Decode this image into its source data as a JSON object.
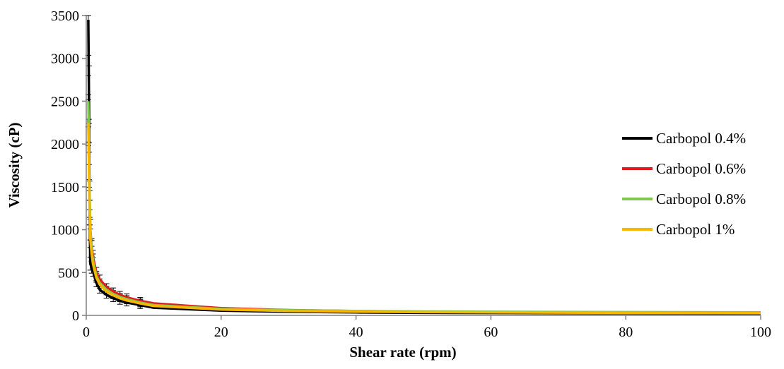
{
  "chart_data": {
    "type": "line",
    "title": "",
    "xlabel": "Shear rate (rpm)",
    "ylabel": "Viscosity (cP)",
    "xlim": [
      0,
      100
    ],
    "ylim": [
      0,
      3500
    ],
    "xticks": [
      0,
      20,
      40,
      60,
      80,
      100
    ],
    "yticks": [
      0,
      500,
      1000,
      1500,
      2000,
      2500,
      3000,
      3500
    ],
    "grid": false,
    "legend_position": "right",
    "error_bars": true,
    "series": [
      {
        "name": "Carbopol 0.4%",
        "color": "#000000",
        "x": [
          0.3,
          0.4,
          0.5,
          0.6,
          0.8,
          1,
          1.5,
          2,
          3,
          4,
          5,
          6,
          8,
          10,
          20,
          30,
          40,
          50,
          60,
          80,
          100
        ],
        "y": [
          3450,
          2600,
          1200,
          600,
          560,
          520,
          380,
          300,
          240,
          200,
          170,
          150,
          120,
          90,
          55,
          42,
          35,
          30,
          28,
          25,
          22
        ]
      },
      {
        "name": "Carbopol 0.6%",
        "color": "#e31a1c",
        "x": [
          0.3,
          0.4,
          0.5,
          0.6,
          0.8,
          1,
          1.5,
          2,
          3,
          4,
          5,
          6,
          8,
          10,
          20,
          30,
          40,
          50,
          60,
          80,
          100
        ],
        "y": [
          2300,
          1800,
          1300,
          1000,
          800,
          680,
          500,
          420,
          330,
          280,
          240,
          210,
          170,
          140,
          85,
          62,
          50,
          42,
          38,
          32,
          28
        ]
      },
      {
        "name": "Carbopol 0.8%",
        "color": "#7ec850",
        "x": [
          0.3,
          0.4,
          0.5,
          0.6,
          0.8,
          1,
          1.5,
          2,
          3,
          4,
          5,
          6,
          8,
          10,
          20,
          30,
          40,
          50,
          60,
          80,
          100
        ],
        "y": [
          2500,
          2000,
          1400,
          1000,
          780,
          640,
          460,
          380,
          300,
          250,
          215,
          190,
          150,
          120,
          75,
          60,
          52,
          45,
          42,
          38,
          35
        ]
      },
      {
        "name": "Carbopol 1%",
        "color": "#f5b800",
        "x": [
          0.3,
          0.4,
          0.5,
          0.6,
          0.8,
          1,
          1.5,
          2,
          3,
          4,
          5,
          6,
          8,
          10,
          20,
          30,
          40,
          50,
          60,
          80,
          100
        ],
        "y": [
          2250,
          1700,
          1200,
          900,
          720,
          600,
          440,
          360,
          280,
          235,
          200,
          175,
          140,
          110,
          68,
          52,
          44,
          38,
          35,
          30,
          27
        ]
      }
    ]
  }
}
